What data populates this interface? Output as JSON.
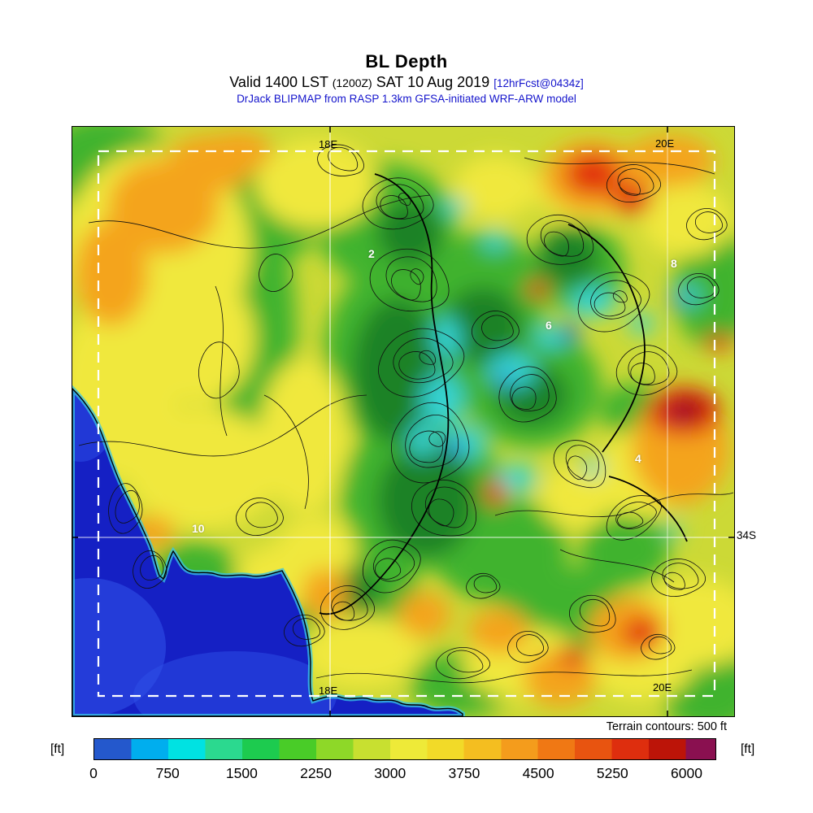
{
  "header": {
    "title": "BL Depth",
    "valid_line": {
      "prefix": "Valid 1400 LST",
      "zulu": "(1200Z)",
      "date": "SAT 10 Aug 2019",
      "forecast": "[12hrFcst@0434z]"
    },
    "model_line": "DrJack BLIPMAP from RASP 1.3km GFSA-initiated WRF-ARW model"
  },
  "map": {
    "grid": {
      "meridian_18e": "18E",
      "meridian_20e": "20E",
      "parallel_34s": "34S"
    },
    "site_labels": [
      "2",
      "8",
      "6",
      "4",
      "10"
    ]
  },
  "annotations": {
    "terrain_note": "Terrain contours: 500 ft"
  },
  "colorbar": {
    "unit_left": "[ft]",
    "unit_right": "[ft]"
  },
  "chart_data": {
    "type": "heatmap",
    "title": "BL Depth",
    "subtitle": "Valid 1400 LST (1200Z) SAT 10 Aug 2019 [12hrFcst@0434z]",
    "model": "DrJack BLIPMAP from RASP 1.3km GFSA-initiated WRF-ARW model",
    "units": "ft",
    "scale_min": 0,
    "scale_max": 6300,
    "tick_values": [
      0,
      750,
      1500,
      2250,
      3000,
      3750,
      4500,
      5250,
      6000
    ],
    "scale_colors": [
      {
        "value": 0,
        "color": "#2458CC"
      },
      {
        "value": 375,
        "color": "#00AEEE"
      },
      {
        "value": 750,
        "color": "#00E2E2"
      },
      {
        "value": 1125,
        "color": "#2BD98F"
      },
      {
        "value": 1500,
        "color": "#1DCB4F"
      },
      {
        "value": 1875,
        "color": "#49CC28"
      },
      {
        "value": 2250,
        "color": "#8ED828"
      },
      {
        "value": 2625,
        "color": "#C8E030"
      },
      {
        "value": 3000,
        "color": "#EEEA38"
      },
      {
        "value": 3375,
        "color": "#F2DA28"
      },
      {
        "value": 3750,
        "color": "#F4BE20"
      },
      {
        "value": 4125,
        "color": "#F49C1C"
      },
      {
        "value": 4500,
        "color": "#F07814"
      },
      {
        "value": 4875,
        "color": "#E85410"
      },
      {
        "value": 5250,
        "color": "#DE2E0E"
      },
      {
        "value": 5625,
        "color": "#BC1408"
      },
      {
        "value": 6000,
        "color": "#8A1050"
      }
    ],
    "terrain_contour_interval_ft": 500,
    "grid_labels": {
      "meridians": [
        "18E",
        "20E"
      ],
      "parallels": [
        "34S"
      ]
    },
    "site_labels": [
      "2",
      "8",
      "6",
      "4",
      "10"
    ]
  }
}
